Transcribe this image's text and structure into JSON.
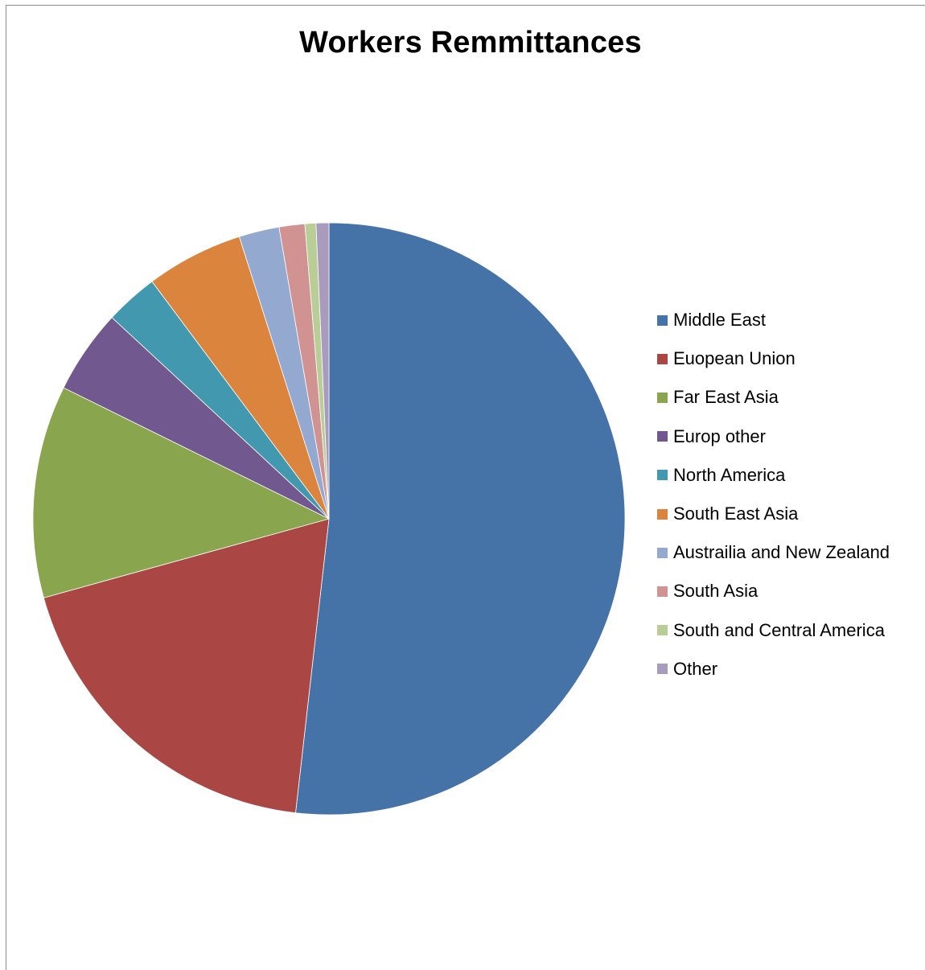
{
  "chart_data": {
    "type": "pie",
    "title": "Workers Remmittances",
    "legend_position": "right",
    "start_angle_deg": 0,
    "direction": "clockwise",
    "slices": [
      {
        "label": "Middle East",
        "value": 51.8,
        "color": "#4572A7"
      },
      {
        "label": "Euopean Union",
        "value": 18.9,
        "color": "#AA4643"
      },
      {
        "label": "Far East Asia",
        "value": 11.6,
        "color": "#89A54E"
      },
      {
        "label": "Europ other",
        "value": 4.6,
        "color": "#71588F"
      },
      {
        "label": "North America",
        "value": 2.9,
        "color": "#4198AF"
      },
      {
        "label": "South East Asia",
        "value": 5.3,
        "color": "#DB843D"
      },
      {
        "label": "Austrailia and New Zealand",
        "value": 2.2,
        "color": "#93A9CF"
      },
      {
        "label": "South Asia",
        "value": 1.4,
        "color": "#D19392"
      },
      {
        "label": "South and Central America",
        "value": 0.6,
        "color": "#B9CD96"
      },
      {
        "label": "Other",
        "value": 0.7,
        "color": "#A99BBD"
      }
    ]
  }
}
